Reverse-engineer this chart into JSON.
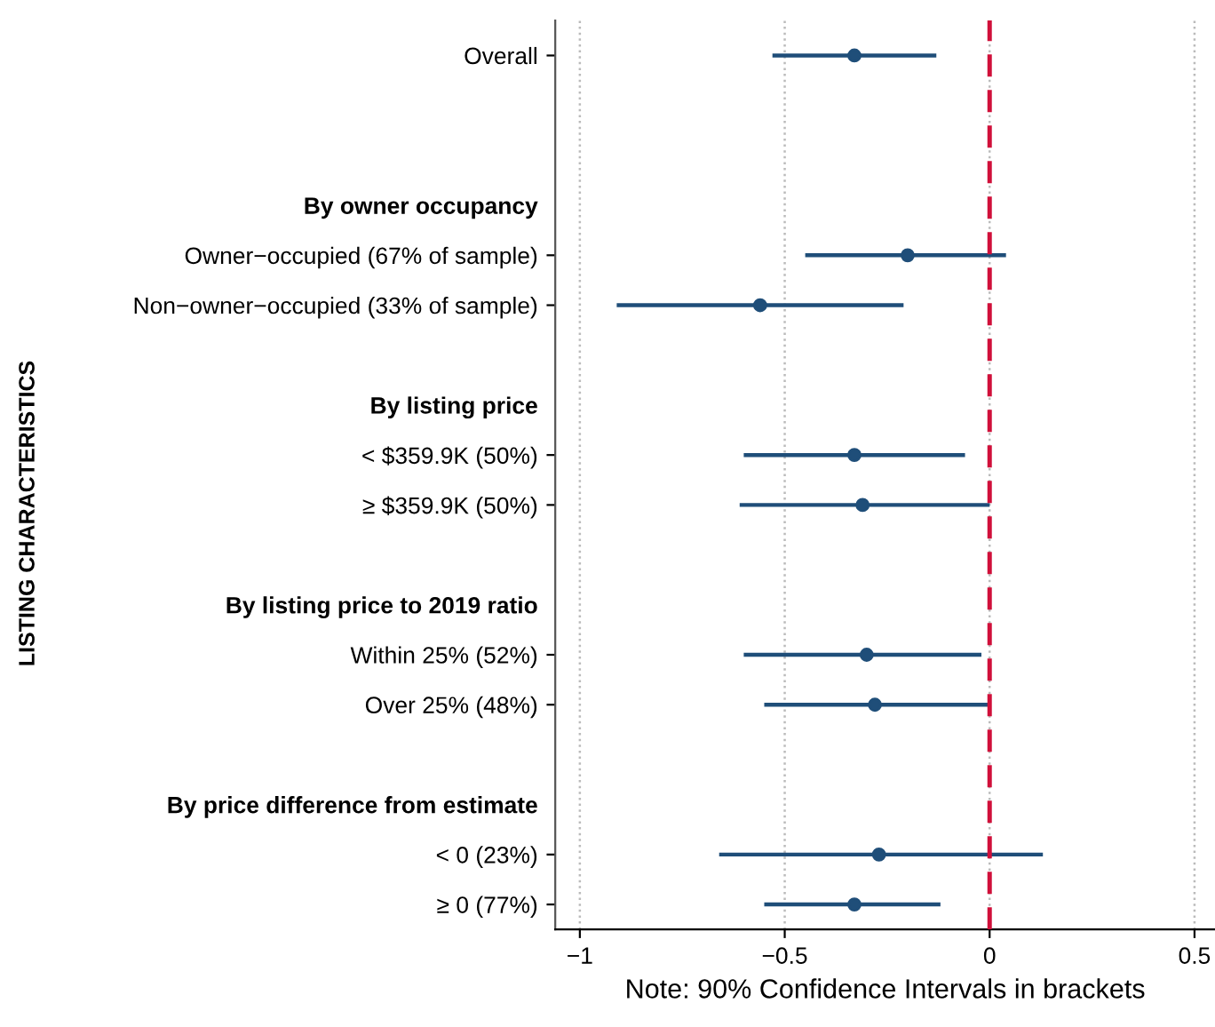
{
  "chart_data": {
    "type": "scatter",
    "orientation": "horizontal",
    "xlabel": "Note: 90% Confidence Intervals in brackets",
    "ylabel": "LISTING CHARACTERISTICS",
    "categories": [
      "Overall",
      null,
      null,
      "By owner occupancy",
      "Owner−occupied (67% of sample)",
      "Non−owner−occupied (33% of sample)",
      null,
      "By listing price",
      "< $359.9K (50%)",
      "≥ $359.9K (50%)",
      null,
      "By listing price to 2019 ratio",
      "Within 25% (52%)",
      "Over 25% (48%)",
      null,
      "By price difference from estimate",
      "< 0 (23%)",
      "≥ 0 (77%)"
    ],
    "series": [
      {
        "color": "#1f4e79",
        "values": [
          -0.33,
          null,
          null,
          null,
          -0.2,
          -0.56,
          null,
          null,
          -0.33,
          -0.31,
          null,
          null,
          -0.3,
          -0.28,
          null,
          null,
          -0.27,
          -0.33
        ],
        "errors": [
          [
            -0.53,
            -0.13
          ],
          null,
          null,
          null,
          [
            -0.45,
            0.04
          ],
          [
            -0.91,
            -0.21
          ],
          null,
          null,
          [
            -0.6,
            -0.06
          ],
          [
            -0.61,
            0.0
          ],
          null,
          null,
          [
            -0.6,
            -0.02
          ],
          [
            -0.55,
            0.0
          ],
          null,
          null,
          [
            -0.66,
            0.13
          ],
          [
            -0.55,
            -0.12
          ]
        ]
      }
    ],
    "xlim": [
      -1.06,
      0.55
    ],
    "xticks": [
      {
        "value": -1,
        "label": "−1"
      },
      {
        "value": -0.5,
        "label": "−0.5"
      },
      0,
      0.5
    ],
    "ref_lines": [
      {
        "axis": "x",
        "value": 0,
        "color": "#d0103a",
        "line_style": "dashed"
      }
    ],
    "grid": "x",
    "marker": "circle",
    "legend": false
  }
}
